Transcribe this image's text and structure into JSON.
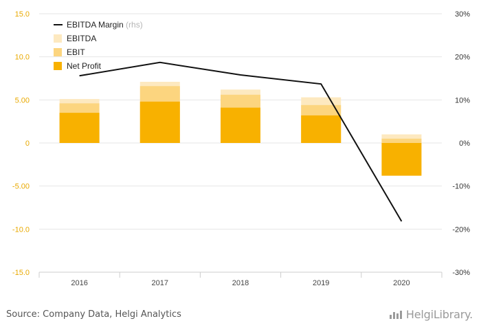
{
  "chart_data": {
    "type": "bar",
    "categories": [
      "2016",
      "2017",
      "2018",
      "2019",
      "2020"
    ],
    "stacked_overlay": true,
    "series": [
      {
        "name": "EBITDA",
        "values": [
          5.1,
          7.1,
          6.2,
          5.3,
          1.0
        ],
        "color": "#fde9c0"
      },
      {
        "name": "EBIT",
        "values": [
          4.6,
          6.6,
          5.6,
          4.4,
          0.5
        ],
        "color": "#fcd57f"
      },
      {
        "name": "Net Profit",
        "values": [
          3.5,
          4.8,
          4.1,
          3.2,
          -3.8
        ],
        "color": "#f8b100"
      }
    ],
    "line_series": {
      "name": "EBITDA Margin",
      "name_suffix": "(rhs)",
      "values": [
        15.6,
        18.7,
        15.8,
        13.7,
        -18.2
      ],
      "color": "#111111",
      "unit": "%"
    },
    "y_left": {
      "min": -15,
      "max": 15,
      "ticks": [
        "15.0",
        "10.0",
        "5.00",
        "0",
        "-5.00",
        "-10.0",
        "-15.0"
      ],
      "tick_values": [
        15,
        10,
        5,
        0,
        -5,
        -10,
        -15
      ],
      "color": "#e9a900"
    },
    "y_right": {
      "min": -30,
      "max": 30,
      "ticks": [
        "30%",
        "20%",
        "10%",
        "0%",
        "-10%",
        "-20%",
        "-30%"
      ],
      "tick_values": [
        30,
        20,
        10,
        0,
        -10,
        -20,
        -30
      ]
    },
    "grid": true,
    "legend_position": "top-left",
    "title": "",
    "xlabel": "",
    "ylabel": ""
  },
  "footer": {
    "source": "Source: Company Data, Helgi Analytics",
    "logo": "HelgiLibrary."
  }
}
